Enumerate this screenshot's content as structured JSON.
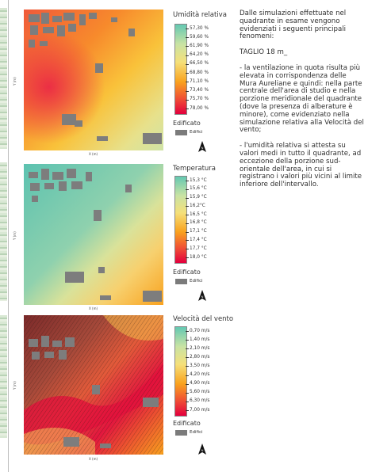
{
  "panels": [
    {
      "id": "humidity",
      "legend_title": "Umidità relativa",
      "ticks": [
        "57,30 %",
        "59,60 %",
        "61,90 %",
        "64,20 %",
        "66,50 %",
        "68,80 %",
        "71,10 %",
        "73,40 %",
        "75,70 %",
        "78,00 %"
      ],
      "colors": [
        "#64c8b2",
        "#f0e68c",
        "#f9a21e",
        "#ea1a3b",
        "#e3003d"
      ],
      "built_title": "Edificato",
      "built_label": "Edifici",
      "y_axis": "Y (m)",
      "x_axis": "X (m)"
    },
    {
      "id": "temperature",
      "legend_title": "Temperatura",
      "ticks": [
        "15,3 °C",
        "15,6 °C",
        "15,9 °C",
        "16,2°C",
        "16,5 °C",
        "16,8 °C",
        "17,1 °C",
        "17,4 °C",
        "17,7 °C",
        "18,0 °C"
      ],
      "colors": [
        "#64c8b2",
        "#f0e68c",
        "#f9a21e",
        "#ea1a3b",
        "#e3003d"
      ],
      "built_title": "Edificato",
      "built_label": "Edifici",
      "y_axis": "Y (m)",
      "x_axis": "X (m)"
    },
    {
      "id": "wind",
      "legend_title": "Velocità del vento",
      "ticks": [
        "0,70 m/s",
        "1,40 m/s",
        "2,10 m/s",
        "2,80 m/s",
        "3,50 m/s",
        "4,20 m/s",
        "4,90 m/s",
        "5,60 m/s",
        "6,30 m/s",
        "7,00 m/s"
      ],
      "colors": [
        "#64c8b2",
        "#f0e68c",
        "#f9a21e",
        "#ea1a3b",
        "#e3003d"
      ],
      "built_title": "Edificato",
      "built_label": "Edifici",
      "y_axis": "Y (m)",
      "x_axis": "X (m)"
    }
  ],
  "text": {
    "intro": "Dalle simulazioni effettuate nel quadrante in esame vengono evidenziati i seguenti principali fenomeni:",
    "cut": "TAGLIO 18 m_",
    "point1": "- la ventilazione in quota risulta più elevata in corrispondenza delle Mura Aureliane e quindi: nella parte centrale dell'area di studio e nella porzione meridionale del quadrante (dove la presenza di alberature è minore), come evidenziato nella simulazione relativa alla Velocità del vento;",
    "point2": "- l'umidità relativa si attesta su valori medi in tutto il quadrante, ad eccezione della porzione sud-orientale dell'area, in cui si registrano i valori più vicini al limite inferiore dell'intervallo."
  }
}
